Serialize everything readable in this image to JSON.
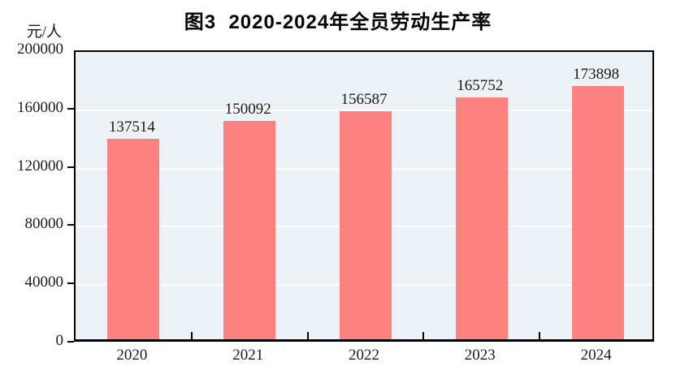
{
  "title": "图3  2020-2024年全员劳动生产率",
  "unit_label": "元/人",
  "colors": {
    "bar": "#fb8281",
    "plot_background": "#edf2f6",
    "gridline": "#ffffff",
    "axis": "#000000",
    "text": "#1a1a1a"
  },
  "chart_data": {
    "type": "bar",
    "title": "图3  2020-2024年全员劳动生产率",
    "categories": [
      "2020",
      "2021",
      "2022",
      "2023",
      "2024"
    ],
    "values": [
      137514,
      150092,
      156587,
      165752,
      173898
    ],
    "xlabel": "",
    "ylabel": "元/人",
    "ylim": [
      0,
      200000
    ],
    "yticks": [
      0,
      40000,
      80000,
      120000,
      160000,
      200000
    ],
    "grid": true,
    "gridline_color": "#ffffff",
    "bar_color": "#fb8281",
    "data_labels": true,
    "legend": "none"
  }
}
